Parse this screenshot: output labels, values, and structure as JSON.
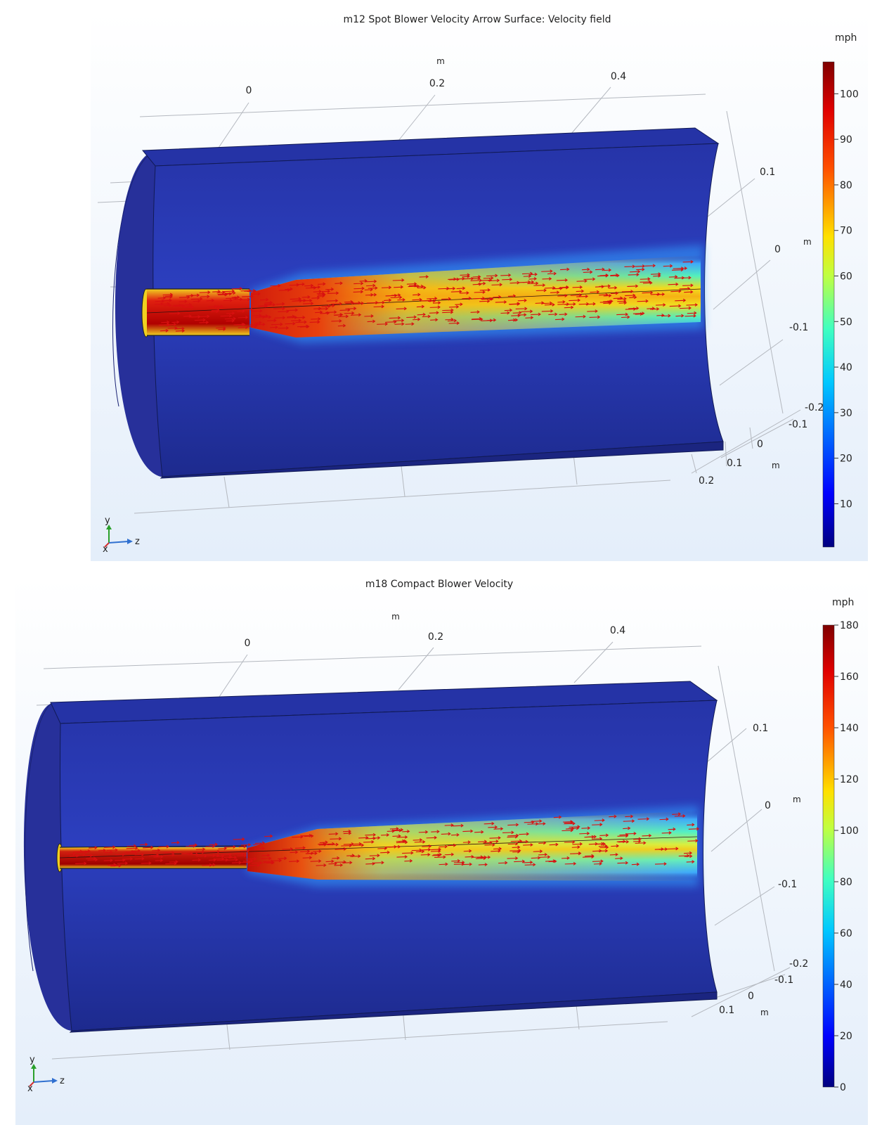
{
  "plots": [
    {
      "title": "m12 Spot Blower Velocity   Arrow Surface: Velocity field",
      "unit": "mph",
      "colorbar_ticks": [
        "10",
        "20",
        "30",
        "40",
        "50",
        "60",
        "70",
        "80",
        "90",
        "100"
      ],
      "z_axis": {
        "unit": "m",
        "ticks": [
          "0",
          "0.2",
          "0.4"
        ]
      },
      "y_axis": {
        "unit": "m",
        "ticks": [
          "0.1",
          "0",
          "-0.1",
          "-0.2"
        ]
      },
      "x_axis": {
        "unit": "m",
        "ticks": [
          "-0.1",
          "0",
          "0.1",
          "0.2"
        ]
      },
      "triad": {
        "y": "y",
        "z": "z",
        "x": "x"
      }
    },
    {
      "title": "m18 Compact Blower Velocity",
      "unit": "mph",
      "colorbar_ticks": [
        "0",
        "20",
        "40",
        "60",
        "80",
        "100",
        "120",
        "140",
        "160",
        "180"
      ],
      "z_axis": {
        "unit": "m",
        "ticks": [
          "0",
          "0.2",
          "0.4"
        ]
      },
      "y_axis": {
        "unit": "m",
        "ticks": [
          "0.1",
          "0",
          "-0.1",
          "-0.2"
        ]
      },
      "x_axis": {
        "unit": "m",
        "ticks": [
          "-0.1",
          "0",
          "0.1"
        ]
      },
      "triad": {
        "y": "y",
        "z": "z",
        "x": "x"
      }
    }
  ],
  "colors": {
    "background_top": "#ffffff",
    "background_bottom": "#e4eefa",
    "domain": "#1f2a93",
    "jet": [
      "#00007f",
      "#0000ff",
      "#0080ff",
      "#00ffff",
      "#80ff80",
      "#ffff00",
      "#ff8000",
      "#ff0000",
      "#7f0000"
    ],
    "arrow": "#d81010"
  }
}
